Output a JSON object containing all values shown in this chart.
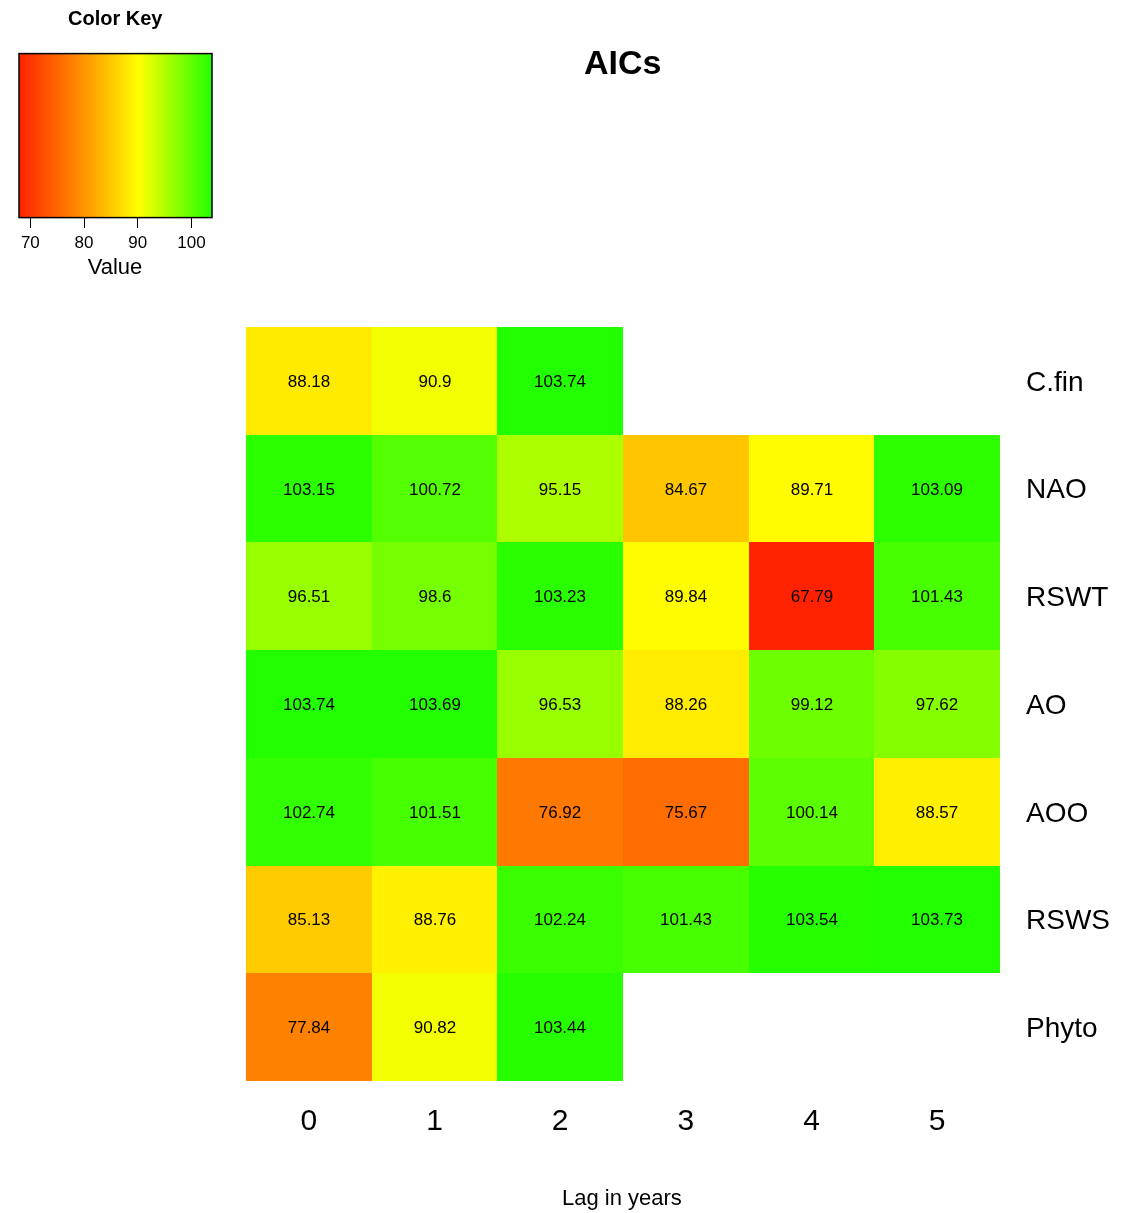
{
  "chart_data": {
    "type": "heatmap",
    "title": "AICs",
    "xlabel": "Lag in years",
    "clabel": "Value",
    "annotations": [
      "Color Key"
    ],
    "categories": [
      "0",
      "1",
      "2",
      "3",
      "4",
      "5"
    ],
    "y_categories": [
      "C.fin",
      "NAO",
      "RSWT",
      "AO",
      "AOO",
      "RSWS",
      "Phyto"
    ],
    "cells": [
      [
        88.18,
        90.9,
        103.74,
        null,
        null,
        null
      ],
      [
        103.15,
        100.72,
        95.15,
        84.67,
        89.71,
        103.09
      ],
      [
        96.51,
        98.6,
        103.23,
        89.84,
        67.79,
        101.43
      ],
      [
        103.74,
        103.69,
        96.53,
        88.26,
        99.12,
        97.62
      ],
      [
        102.74,
        101.51,
        76.92,
        75.67,
        100.14,
        88.57
      ],
      [
        85.13,
        88.76,
        102.24,
        101.43,
        103.54,
        103.73
      ],
      [
        77.84,
        90.82,
        103.44,
        null,
        null,
        null
      ]
    ],
    "data_labels": true,
    "clim": [
      67.79,
      103.74
    ],
    "cticks": [
      70,
      80,
      90,
      100
    ]
  }
}
